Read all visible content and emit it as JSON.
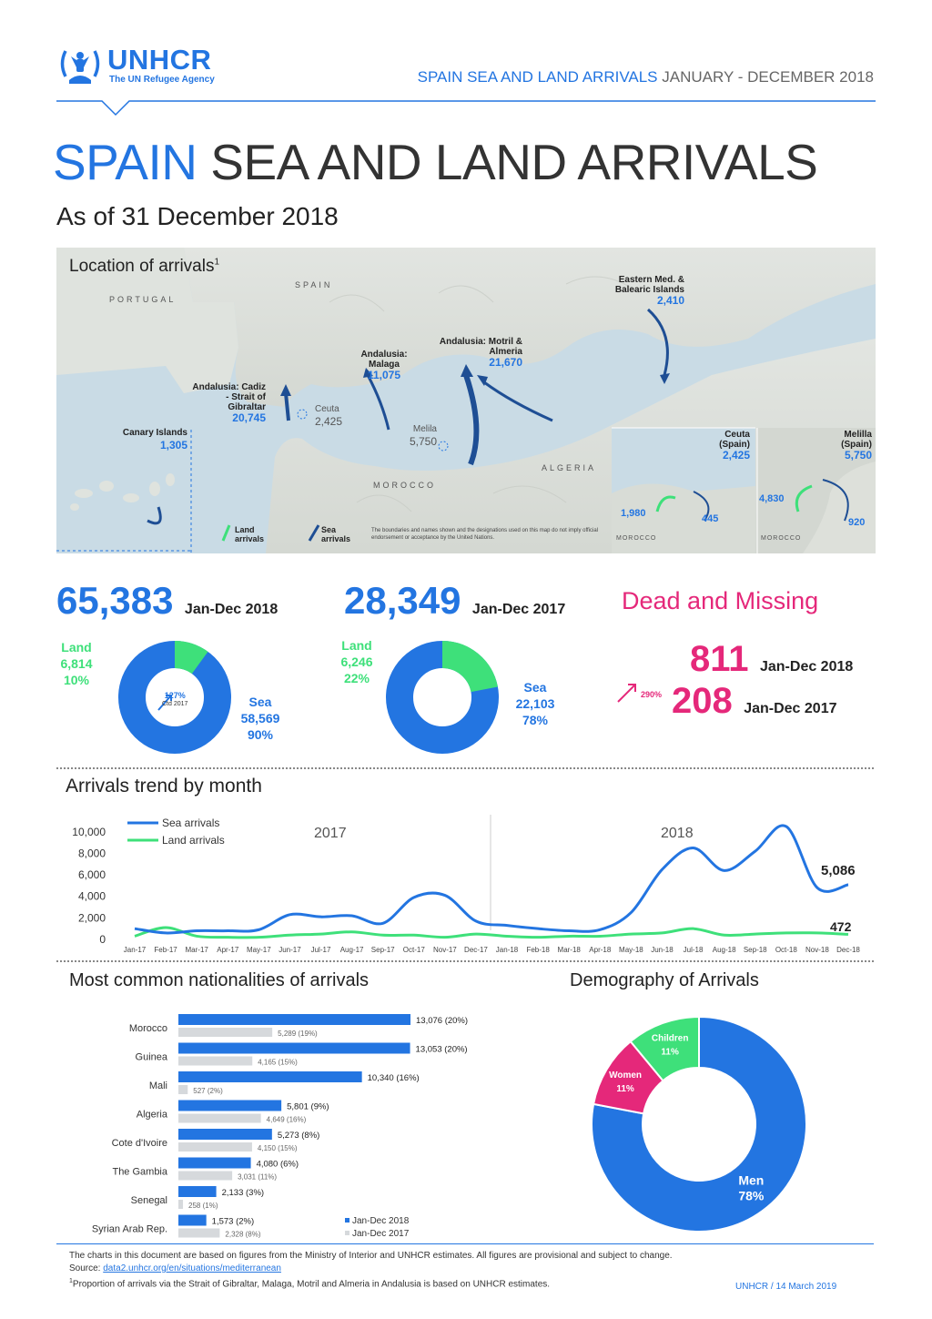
{
  "header": {
    "logo_text": "UNHCR",
    "logo_sub": "The UN Refugee Agency",
    "top_title_bold": "SPAIN SEA AND LAND ARRIVALS",
    "top_title_rest": "JANUARY - DECEMBER 2018"
  },
  "title": {
    "bold": "SPAIN",
    "rest": "SEA AND LAND ARRIVALS",
    "subtitle": "As of 31 December 2018"
  },
  "map": {
    "title": "Location of arrivals",
    "title_sup": "1",
    "country_labels": {
      "spain": "SPAIN",
      "portugal": "PORTUGAL",
      "morocco": "MOROCCO",
      "algeria": "ALGERIA"
    },
    "regions": [
      {
        "name": "Eastern Med. & Balearic Islands",
        "value": "2,410"
      },
      {
        "name": "Andalusia: Motril & Almeria",
        "value": "21,670"
      },
      {
        "name": "Andalusia: Malaga",
        "value": "11,075"
      },
      {
        "name": "Andalusia: Cadiz - Strait of Gibraltar",
        "value": "20,745"
      },
      {
        "name": "Ceuta",
        "value": "2,425"
      },
      {
        "name": "Melila",
        "value": "5,750"
      },
      {
        "name": "Canary Islands",
        "value": "1,305"
      }
    ],
    "inset_ceuta": {
      "name": "Ceuta (Spain)",
      "value": "2,425",
      "land": "1,980",
      "sea": "445",
      "country": "MOROCCO"
    },
    "inset_melilla": {
      "name": "Melilla (Spain)",
      "value": "5,750",
      "land": "4,830",
      "sea": "920",
      "country": "MOROCCO"
    },
    "legend_land": "Land arrivals",
    "legend_sea": "Sea arrivals",
    "disclaimer": "The boundaries and names shown and the designations used on this map do not imply official endorsement or acceptance by the United Nations."
  },
  "totals": {
    "y2018": {
      "value": "65,383",
      "period": "Jan-Dec 2018",
      "land_label": "Land",
      "land_value": "6,814",
      "land_pct": "10%",
      "sea_label": "Sea",
      "sea_value": "58,569",
      "sea_pct": "90%",
      "change": "127%",
      "change_note": "Ctd 2017",
      "land_share": 0.1
    },
    "y2017": {
      "value": "28,349",
      "period": "Jan-Dec 2017",
      "land_label": "Land",
      "land_value": "6,246",
      "land_pct": "22%",
      "sea_label": "Sea",
      "sea_value": "22,103",
      "sea_pct": "78%",
      "land_share": 0.22
    },
    "dead": {
      "title": "Dead and Missing",
      "v2018": "811",
      "p2018": "Jan-Dec 2018",
      "v2017": "208",
      "p2017": "Jan-Dec 2017",
      "change": "290%"
    }
  },
  "trend": {
    "title": "Arrivals trend by month",
    "legend_sea": "Sea arrivals",
    "legend_land": "Land arrivals",
    "year_left": "2017",
    "year_right": "2018",
    "last_sea": "5,086",
    "last_land": "472"
  },
  "nationalities": {
    "title": "Most common nationalities of arrivals",
    "legend_2018": "Jan-Dec 2018",
    "legend_2017": "Jan-Dec 2017"
  },
  "demography": {
    "title": "Demography of Arrivals"
  },
  "footer": {
    "line1": "The charts in this document are based on figures from the Ministry of Interior and UNHCR estimates. All figures are provisional and subject to change.",
    "source_label": "Source:",
    "source_link": "data2.unhcr.org/en/situations/mediterranean",
    "note_sup": "1",
    "note": "Proportion of arrivals via the Strait of Gibraltar, Malaga, Motril and Almeria in Andalusia is based on UNHCR estimates.",
    "date": "UNHCR / 14 March 2019"
  },
  "colors": {
    "blue": "#2375e1",
    "green": "#3ee07a",
    "pink": "#e5287a",
    "gray": "#d6d9dc"
  },
  "chart_data": [
    {
      "type": "line",
      "x": [
        "Jan-17",
        "Feb-17",
        "Mar-17",
        "Apr-17",
        "May-17",
        "Jun-17",
        "Jul-17",
        "Aug-17",
        "Sep-17",
        "Oct-17",
        "Nov-17",
        "Dec-17",
        "Jan-18",
        "Feb-18",
        "Mar-18",
        "Apr-18",
        "May-18",
        "Jun-18",
        "Jul-18",
        "Aug-18",
        "Sep-18",
        "Oct-18",
        "Nov-18",
        "Dec-18"
      ],
      "series": [
        {
          "name": "Sea arrivals",
          "values": [
            1000,
            600,
            800,
            800,
            900,
            2300,
            2100,
            2200,
            1500,
            3900,
            4100,
            1700,
            1300,
            1000,
            800,
            900,
            2500,
            6500,
            8500,
            6400,
            8200,
            10500,
            4800,
            5086
          ]
        },
        {
          "name": "Land arrivals",
          "values": [
            300,
            1100,
            300,
            200,
            200,
            400,
            500,
            700,
            400,
            400,
            200,
            500,
            300,
            200,
            300,
            300,
            500,
            600,
            1000,
            400,
            500,
            600,
            600,
            472
          ]
        }
      ],
      "yticks": [
        "0",
        "2,000",
        "4,000",
        "6,000",
        "8,000",
        "10,000"
      ],
      "ylim": [
        0,
        11000
      ]
    },
    {
      "type": "bar",
      "categories": [
        "Morocco",
        "Guinea",
        "Mali",
        "Algeria",
        "Cote d'Ivoire",
        "The Gambia",
        "Senegal",
        "Syrian Arab Rep."
      ],
      "series": [
        {
          "name": "Jan-Dec 2018",
          "values": [
            13076,
            13053,
            10340,
            5801,
            5273,
            4080,
            2133,
            1573
          ],
          "labels": [
            "13,076 (20%)",
            "13,053 (20%)",
            "10,340 (16%)",
            "5,801 (9%)",
            "5,273 (8%)",
            "4,080 (6%)",
            "2,133 (3%)",
            "1,573 (2%)"
          ]
        },
        {
          "name": "Jan-Dec 2017",
          "values": [
            5289,
            4165,
            527,
            4649,
            4150,
            3031,
            258,
            2328
          ],
          "labels": [
            "5,289 (19%)",
            "4,165 (15%)",
            "527 (2%)",
            "4,649 (16%)",
            "4,150 (15%)",
            "3,031 (11%)",
            "258 (1%)",
            "2,328 (8%)"
          ]
        }
      ]
    },
    {
      "type": "pie",
      "categories": [
        "Men",
        "Women",
        "Children"
      ],
      "values": [
        78,
        11,
        11
      ],
      "labels": [
        "78%",
        "11%",
        "11%"
      ]
    }
  ]
}
